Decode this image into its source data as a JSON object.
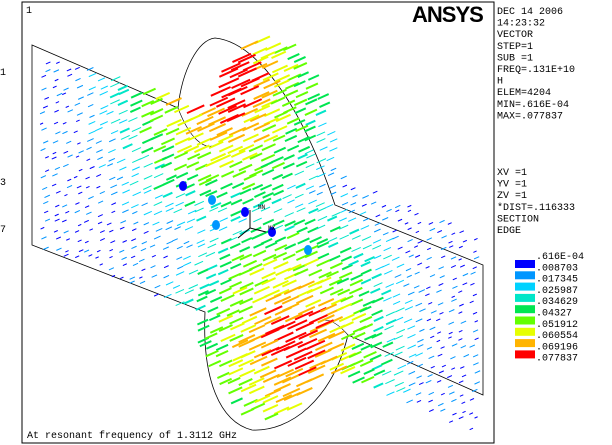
{
  "window_number": "1",
  "logo": "ANSYS",
  "info": [
    "DEC 14 2006",
    "14:23:32",
    "VECTOR",
    "STEP=1",
    "SUB =1",
    "FREQ=.131E+10",
    "H",
    "ELEM=4204",
    "MIN=.616E-04",
    "MAX=.077837"
  ],
  "view": [
    "XV  =1",
    "YV  =1",
    "ZV  =1",
    "*DIST=.116333",
    "SECTION",
    "EDGE"
  ],
  "legend": {
    "labels": [
      ".616E-04",
      ".008703",
      ".017345",
      ".025987",
      ".034629",
      ".04327",
      ".051912",
      ".060554",
      ".069196",
      ".077837"
    ],
    "colors": [
      "#0000ff",
      "#0096ff",
      "#00d2ff",
      "#00e6c8",
      "#00e650",
      "#64ff00",
      "#e6ff00",
      "#ffb400",
      "#ff0000"
    ]
  },
  "left_labels": [
    "1",
    "3",
    "7"
  ],
  "triad_labels": [
    "MN",
    "MX"
  ],
  "caption": "At resonant frequency of 1.3112 GHz"
}
